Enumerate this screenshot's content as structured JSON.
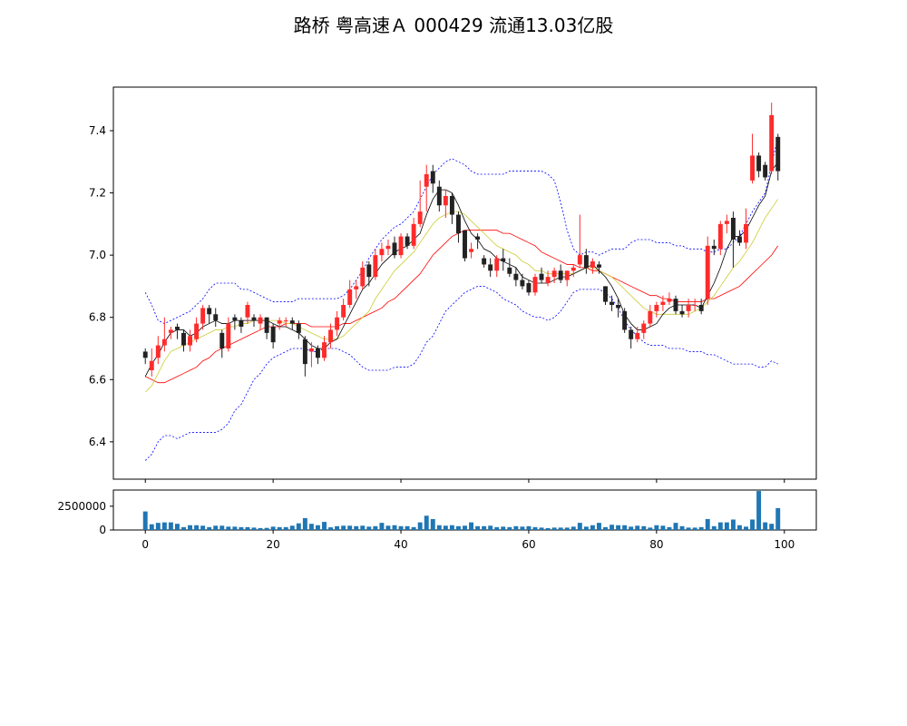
{
  "chart_data": {
    "type": "candlestick",
    "title": "路桥  粤高速Ａ  000429  流通13.03亿股",
    "xlabel": "",
    "ylabel": "",
    "ylim": [
      6.28,
      7.54
    ],
    "xlim": [
      -5,
      105
    ],
    "yticks": [
      "6.4",
      "6.6",
      "6.8",
      "7.0",
      "7.2",
      "7.4"
    ],
    "xticks": [
      "0",
      "20",
      "40",
      "60",
      "80",
      "100"
    ],
    "volume_ylim": [
      0,
      4200000
    ],
    "volume_yticks": [
      "0",
      "2500000"
    ],
    "grid": false,
    "colors": {
      "up": "#ff2b2b",
      "down": "#222222",
      "ma5": "#000000",
      "ma10": "#cccc33",
      "ma20": "#ff0000",
      "bollinger": "#0000ff",
      "volume": "#1f77b4"
    },
    "close": [
      6.67,
      6.66,
      6.71,
      6.73,
      6.76,
      6.76,
      6.71,
      6.74,
      6.78,
      6.83,
      6.81,
      6.79,
      6.7,
      6.78,
      6.79,
      6.77,
      6.84,
      6.79,
      6.8,
      6.75,
      6.72,
      6.79,
      6.79,
      6.78,
      6.75,
      6.65,
      6.7,
      6.67,
      6.72,
      6.76,
      6.8,
      6.84,
      6.89,
      6.9,
      6.96,
      6.93,
      7.0,
      7.02,
      7.03,
      7.0,
      7.06,
      7.03,
      7.1,
      7.14,
      7.26,
      7.23,
      7.16,
      7.19,
      7.13,
      7.07,
      6.99,
      7.02,
      7.05,
      6.97,
      6.95,
      6.99,
      6.98,
      6.94,
      6.92,
      6.9,
      6.88,
      6.93,
      6.92,
      6.93,
      6.95,
      6.92,
      6.95,
      6.96,
      7.0,
      6.96,
      6.98,
      6.96,
      6.85,
      6.84,
      6.83,
      6.76,
      6.73,
      6.75,
      6.78,
      6.82,
      6.84,
      6.85,
      6.86,
      6.82,
      6.81,
      6.84,
      6.84,
      6.82,
      7.03,
      7.02,
      7.1,
      7.11,
      7.05,
      7.04,
      7.1,
      7.32,
      7.27,
      7.25,
      7.45,
      7.27
    ],
    "open": [
      6.69,
      6.63,
      6.67,
      6.71,
      6.75,
      6.77,
      6.75,
      6.71,
      6.73,
      6.78,
      6.83,
      6.81,
      6.75,
      6.7,
      6.8,
      6.79,
      6.8,
      6.8,
      6.78,
      6.8,
      6.77,
      6.78,
      6.79,
      6.79,
      6.78,
      6.73,
      6.69,
      6.7,
      6.67,
      6.72,
      6.76,
      6.8,
      6.84,
      6.89,
      6.9,
      6.97,
      6.93,
      7.0,
      7.02,
      7.04,
      7.0,
      7.06,
      7.03,
      7.1,
      7.22,
      7.27,
      7.22,
      7.16,
      7.19,
      7.13,
      7.08,
      7.01,
      7.06,
      6.99,
      6.97,
      6.95,
      6.99,
      6.96,
      6.94,
      6.92,
      6.91,
      6.88,
      6.94,
      6.91,
      6.93,
      6.95,
      6.92,
      6.95,
      6.97,
      7.0,
      6.96,
      6.97,
      6.9,
      6.85,
      6.84,
      6.82,
      6.76,
      6.73,
      6.75,
      6.78,
      6.82,
      6.84,
      6.85,
      6.86,
      6.82,
      6.82,
      6.84,
      6.84,
      6.86,
      7.03,
      7.02,
      7.1,
      7.12,
      7.06,
      7.04,
      7.24,
      7.32,
      7.29,
      7.27,
      7.38
    ],
    "high": [
      6.7,
      6.7,
      6.74,
      6.8,
      6.77,
      6.78,
      6.76,
      6.76,
      6.8,
      6.84,
      6.84,
      6.83,
      6.76,
      6.8,
      6.81,
      6.8,
      6.85,
      6.81,
      6.81,
      6.8,
      6.78,
      6.8,
      6.8,
      6.8,
      6.79,
      6.74,
      6.72,
      6.71,
      6.74,
      6.78,
      6.82,
      6.86,
      6.92,
      6.92,
      6.98,
      6.98,
      7.02,
      7.04,
      7.05,
      7.06,
      7.07,
      7.07,
      7.12,
      7.24,
      7.29,
      7.29,
      7.24,
      7.21,
      7.2,
      7.14,
      7.08,
      7.04,
      7.07,
      7.0,
      6.99,
      7.0,
      7.02,
      6.99,
      6.96,
      6.94,
      6.92,
      6.94,
      6.96,
      6.95,
      6.96,
      6.97,
      6.95,
      6.97,
      7.13,
      7.02,
      6.99,
      6.98,
      6.9,
      6.87,
      6.86,
      6.83,
      6.77,
      6.77,
      6.79,
      6.84,
      6.85,
      6.87,
      6.88,
      6.87,
      6.84,
      6.86,
      6.86,
      6.86,
      7.06,
      7.05,
      7.11,
      7.13,
      7.14,
      7.08,
      7.15,
      7.39,
      7.33,
      7.3,
      7.49,
      7.39
    ],
    "low": [
      6.65,
      6.61,
      6.65,
      6.69,
      6.73,
      6.73,
      6.69,
      6.69,
      6.72,
      6.76,
      6.78,
      6.77,
      6.67,
      6.69,
      6.76,
      6.75,
      6.78,
      6.77,
      6.76,
      6.73,
      6.7,
      6.76,
      6.77,
      6.76,
      6.73,
      6.61,
      6.64,
      6.65,
      6.66,
      6.7,
      6.74,
      6.79,
      6.83,
      6.86,
      6.89,
      6.9,
      6.92,
      6.98,
      7.0,
      6.99,
      6.99,
      7.02,
      7.02,
      7.09,
      7.14,
      7.2,
      7.14,
      7.12,
      7.1,
      7.04,
      6.98,
      6.99,
      7.02,
      6.96,
      6.93,
      6.93,
      6.95,
      6.93,
      6.9,
      6.89,
      6.87,
      6.87,
      6.91,
      6.9,
      6.91,
      6.91,
      6.9,
      6.93,
      6.96,
      6.94,
      6.94,
      6.94,
      6.84,
      6.82,
      6.8,
      6.75,
      6.7,
      6.72,
      6.73,
      6.77,
      6.8,
      6.82,
      6.84,
      6.81,
      6.8,
      6.8,
      6.82,
      6.81,
      6.84,
      7.0,
      7.0,
      7.07,
      6.96,
      7.03,
      7.02,
      7.23,
      7.25,
      7.24,
      7.26,
      7.24
    ],
    "volume": [
      1950000,
      600000,
      750000,
      800000,
      800000,
      650000,
      300000,
      500000,
      500000,
      450000,
      300000,
      450000,
      450000,
      350000,
      350000,
      300000,
      300000,
      250000,
      200000,
      220000,
      350000,
      300000,
      300000,
      450000,
      700000,
      1250000,
      650000,
      500000,
      850000,
      280000,
      400000,
      450000,
      450000,
      400000,
      450000,
      350000,
      400000,
      750000,
      450000,
      500000,
      400000,
      400000,
      300000,
      800000,
      1500000,
      1150000,
      500000,
      450000,
      500000,
      400000,
      450000,
      800000,
      400000,
      400000,
      450000,
      300000,
      350000,
      300000,
      400000,
      350000,
      400000,
      300000,
      250000,
      200000,
      250000,
      250000,
      250000,
      350000,
      750000,
      350000,
      500000,
      750000,
      300000,
      550000,
      500000,
      500000,
      350000,
      450000,
      400000,
      250000,
      500000,
      450000,
      300000,
      750000,
      400000,
      250000,
      250000,
      300000,
      1150000,
      400000,
      800000,
      800000,
      1100000,
      500000,
      350000,
      1100000,
      4100000,
      800000,
      650000,
      2300000
    ],
    "ma5": [
      6.61,
      6.65,
      6.68,
      6.72,
      6.75,
      6.76,
      6.76,
      6.74,
      6.75,
      6.77,
      6.78,
      6.79,
      6.78,
      6.78,
      6.79,
      6.79,
      6.79,
      6.79,
      6.79,
      6.79,
      6.78,
      6.77,
      6.77,
      6.76,
      6.75,
      6.73,
      6.71,
      6.7,
      6.7,
      6.72,
      6.73,
      6.77,
      6.81,
      6.85,
      6.89,
      6.91,
      6.94,
      6.97,
      6.99,
      7.01,
      7.02,
      7.03,
      7.05,
      7.07,
      7.13,
      7.18,
      7.21,
      7.21,
      7.2,
      7.16,
      7.11,
      7.07,
      7.05,
      7.02,
      7.01,
      6.99,
      6.98,
      6.97,
      6.96,
      6.93,
      6.92,
      6.91,
      6.91,
      6.91,
      6.92,
      6.93,
      6.93,
      6.94,
      6.95,
      6.96,
      6.97,
      6.95,
      6.93,
      6.9,
      6.86,
      6.81,
      6.78,
      6.76,
      6.76,
      6.77,
      6.78,
      6.81,
      6.83,
      6.84,
      6.84,
      6.84,
      6.84,
      6.83,
      6.87,
      6.91,
      6.96,
      7.02,
      7.06,
      7.06,
      7.08,
      7.12,
      7.16,
      7.19,
      7.27,
      7.3
    ],
    "ma10": [
      6.56,
      6.58,
      6.62,
      6.66,
      6.69,
      6.7,
      6.71,
      6.72,
      6.73,
      6.74,
      6.75,
      6.76,
      6.76,
      6.77,
      6.77,
      6.78,
      6.78,
      6.79,
      6.79,
      6.79,
      6.79,
      6.79,
      6.78,
      6.78,
      6.77,
      6.76,
      6.75,
      6.74,
      6.73,
      6.73,
      6.73,
      6.74,
      6.76,
      6.78,
      6.8,
      6.82,
      6.86,
      6.89,
      6.92,
      6.95,
      6.97,
      6.99,
      7.01,
      7.04,
      7.07,
      7.1,
      7.12,
      7.13,
      7.14,
      7.14,
      7.13,
      7.11,
      7.09,
      7.07,
      7.05,
      7.03,
      7.02,
      7.01,
      7.0,
      6.98,
      6.97,
      6.95,
      6.95,
      6.94,
      6.94,
      6.94,
      6.94,
      6.94,
      6.95,
      6.96,
      6.96,
      6.95,
      6.94,
      6.93,
      6.91,
      6.89,
      6.87,
      6.85,
      6.83,
      6.82,
      6.81,
      6.81,
      6.81,
      6.81,
      6.81,
      6.81,
      6.82,
      6.83,
      6.85,
      6.87,
      6.9,
      6.93,
      6.96,
      6.98,
      7.01,
      7.04,
      7.08,
      7.12,
      7.15,
      7.18
    ],
    "ma20": [
      6.61,
      6.6,
      6.59,
      6.59,
      6.6,
      6.61,
      6.62,
      6.63,
      6.64,
      6.66,
      6.67,
      6.69,
      6.7,
      6.71,
      6.72,
      6.73,
      6.74,
      6.75,
      6.76,
      6.77,
      6.77,
      6.77,
      6.78,
      6.78,
      6.78,
      6.78,
      6.77,
      6.77,
      6.77,
      6.77,
      6.77,
      6.78,
      6.78,
      6.79,
      6.8,
      6.81,
      6.82,
      6.83,
      6.85,
      6.86,
      6.88,
      6.9,
      6.92,
      6.94,
      6.97,
      7.0,
      7.02,
      7.04,
      7.06,
      7.07,
      7.08,
      7.08,
      7.08,
      7.08,
      7.08,
      7.08,
      7.07,
      7.07,
      7.06,
      7.05,
      7.04,
      7.03,
      7.01,
      7.0,
      6.99,
      6.98,
      6.97,
      6.97,
      6.96,
      6.96,
      6.95,
      6.95,
      6.94,
      6.93,
      6.92,
      6.91,
      6.9,
      6.89,
      6.88,
      6.87,
      6.87,
      6.86,
      6.86,
      6.85,
      6.85,
      6.85,
      6.85,
      6.85,
      6.86,
      6.86,
      6.87,
      6.88,
      6.89,
      6.9,
      6.92,
      6.94,
      6.96,
      6.98,
      7.0,
      7.03
    ],
    "boll_upper": [
      6.88,
      6.84,
      6.79,
      6.78,
      6.79,
      6.8,
      6.81,
      6.82,
      6.84,
      6.86,
      6.89,
      6.91,
      6.91,
      6.91,
      6.91,
      6.89,
      6.89,
      6.88,
      6.87,
      6.86,
      6.85,
      6.85,
      6.85,
      6.85,
      6.86,
      6.86,
      6.86,
      6.86,
      6.86,
      6.86,
      6.86,
      6.87,
      6.89,
      6.92,
      6.95,
      6.99,
      7.02,
      7.05,
      7.07,
      7.09,
      7.1,
      7.12,
      7.14,
      7.18,
      7.22,
      7.26,
      7.28,
      7.3,
      7.31,
      7.3,
      7.29,
      7.27,
      7.26,
      7.26,
      7.26,
      7.26,
      7.26,
      7.27,
      7.27,
      7.27,
      7.27,
      7.27,
      7.27,
      7.26,
      7.24,
      7.17,
      7.08,
      7.02,
      7.0,
      7.01,
      7.01,
      7.0,
      7.01,
      7.02,
      7.02,
      7.02,
      7.04,
      7.05,
      7.05,
      7.05,
      7.04,
      7.04,
      7.04,
      7.03,
      7.03,
      7.02,
      7.02,
      7.02,
      7.01,
      7.01,
      7.02,
      7.02,
      7.04,
      7.06,
      7.1,
      7.14,
      7.17,
      7.2,
      7.29,
      7.38
    ],
    "boll_lower": [
      6.34,
      6.36,
      6.4,
      6.42,
      6.42,
      6.41,
      6.42,
      6.43,
      6.43,
      6.43,
      6.43,
      6.43,
      6.44,
      6.46,
      6.5,
      6.52,
      6.56,
      6.6,
      6.62,
      6.65,
      6.67,
      6.68,
      6.69,
      6.7,
      6.7,
      6.7,
      6.69,
      6.69,
      6.7,
      6.7,
      6.7,
      6.69,
      6.68,
      6.66,
      6.64,
      6.63,
      6.63,
      6.63,
      6.63,
      6.64,
      6.64,
      6.64,
      6.65,
      6.68,
      6.72,
      6.74,
      6.78,
      6.82,
      6.84,
      6.86,
      6.88,
      6.89,
      6.9,
      6.9,
      6.89,
      6.88,
      6.86,
      6.85,
      6.84,
      6.82,
      6.81,
      6.8,
      6.8,
      6.79,
      6.8,
      6.82,
      6.85,
      6.88,
      6.89,
      6.89,
      6.89,
      6.89,
      6.88,
      6.86,
      6.83,
      6.79,
      6.76,
      6.74,
      6.72,
      6.71,
      6.71,
      6.71,
      6.7,
      6.7,
      6.7,
      6.69,
      6.69,
      6.69,
      6.68,
      6.68,
      6.67,
      6.66,
      6.65,
      6.65,
      6.65,
      6.65,
      6.64,
      6.64,
      6.66,
      6.65
    ]
  }
}
